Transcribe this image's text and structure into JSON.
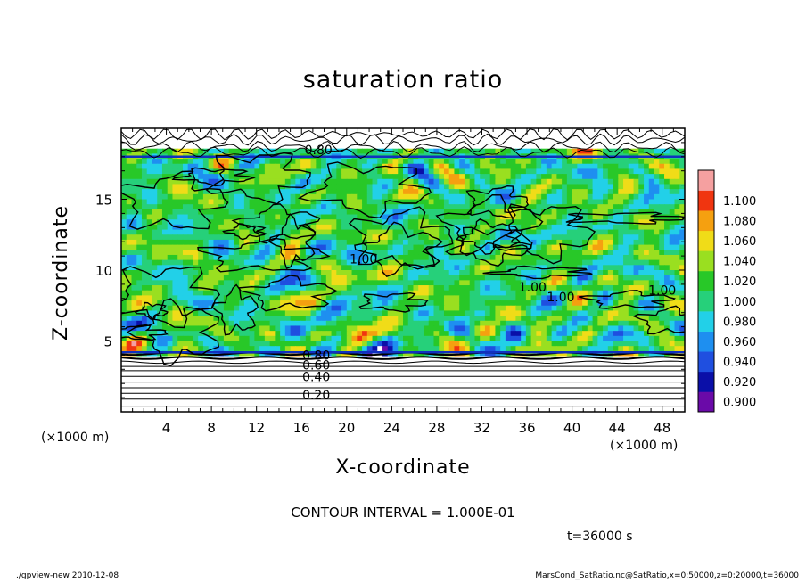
{
  "chart_data": {
    "type": "heatmap",
    "title": "saturation ratio",
    "xlabel": "X-coordinate",
    "ylabel": "Z-coordinate",
    "x_unit": "(×1000 m)",
    "y_unit": "(×1000 m)",
    "xlim": [
      0,
      50
    ],
    "ylim": [
      0,
      20
    ],
    "x_ticks": [
      4,
      8,
      12,
      16,
      20,
      24,
      28,
      32,
      36,
      40,
      44,
      48
    ],
    "y_ticks": [
      5,
      10,
      15
    ],
    "colorbar": {
      "values": [
        0.9,
        0.92,
        0.94,
        0.96,
        0.98,
        1.0,
        1.02,
        1.04,
        1.06,
        1.08,
        1.1
      ],
      "labels": [
        "0.900",
        "0.920",
        "0.940",
        "0.960",
        "0.980",
        "1.000",
        "1.020",
        "1.040",
        "1.060",
        "1.080",
        "1.100"
      ],
      "colors": [
        "#6a0aa8",
        "#0a0fa8",
        "#1f4fe0",
        "#1e8ff0",
        "#22d0e8",
        "#26d07a",
        "#28c828",
        "#9adf20",
        "#f0dc18",
        "#f5a010",
        "#f03510",
        "#f5a0a0"
      ]
    },
    "contour_labels": [
      {
        "text": "0.20",
        "x": 17.3,
        "y": 1.2
      },
      {
        "text": "0.40",
        "x": 17.3,
        "y": 2.5
      },
      {
        "text": "0.60",
        "x": 17.3,
        "y": 3.3
      },
      {
        "text": "0.80",
        "x": 17.3,
        "y": 4.0
      },
      {
        "text": "0.80",
        "x": 17.5,
        "y": 18.5
      },
      {
        "text": "1.00",
        "x": 21.5,
        "y": 10.8
      },
      {
        "text": "1.00",
        "x": 36.5,
        "y": 8.8
      },
      {
        "text": "1.00",
        "x": 39.0,
        "y": 8.1
      },
      {
        "text": "1.00",
        "x": 48.0,
        "y": 8.6
      }
    ],
    "contour_interval": "CONTOUR INTERVAL = 1.000E-01",
    "time": "t=36000 s"
  },
  "footer": {
    "left": "./gpview-new  2010-12-08",
    "right": "MarsCond_SatRatio.nc@SatRatio,x=0:50000,z=0:20000,t=36000"
  }
}
